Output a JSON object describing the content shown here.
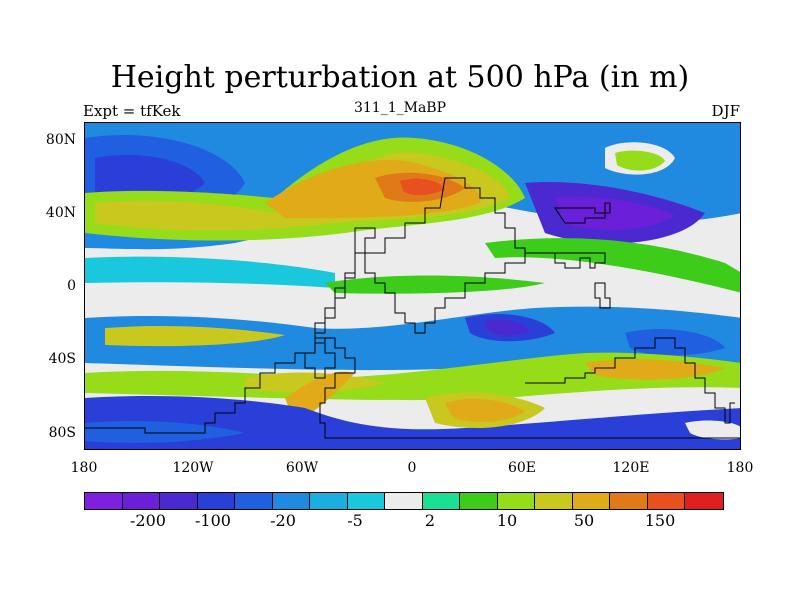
{
  "title": "Height perturbation at 500 hPa (in m)",
  "left_string": "Expt = tfKek",
  "center_string": "311_1_MaBP",
  "right_string": "DJF",
  "y_ticks": [
    "80N",
    "40N",
    "0",
    "40S",
    "80S"
  ],
  "x_ticks": [
    "180",
    "120W",
    "60W",
    "0",
    "60E",
    "120E",
    "180"
  ],
  "colorbar": {
    "colors": [
      "#7f1fe0",
      "#6a1fd8",
      "#4a2ad0",
      "#2a3fd8",
      "#1f5fe0",
      "#1f8ae0",
      "#19b0e0",
      "#19c8dc",
      "#ececec",
      "#19e094",
      "#3ccc19",
      "#96dc19",
      "#c8c81f",
      "#e0aa19",
      "#e07a19",
      "#e8501f",
      "#e01f1f"
    ],
    "labels": [
      "-200",
      "-100",
      "-20",
      "-5",
      "2",
      "10",
      "50",
      "150"
    ]
  },
  "colors": {
    "purple": "#5a28d8",
    "dark_blue": "#2a3fd8",
    "blue": "#1f5fe0",
    "mid_blue": "#1f8ae0",
    "light_blue": "#19b0e0",
    "cyan": "#19c8dc",
    "white": "#ececec",
    "teal": "#19e094",
    "green": "#3ccc19",
    "lime": "#96dc19",
    "yellow": "#c8c81f",
    "orange": "#e0aa19",
    "dark_orange": "#e07a19",
    "red_orange": "#e8501f"
  }
}
